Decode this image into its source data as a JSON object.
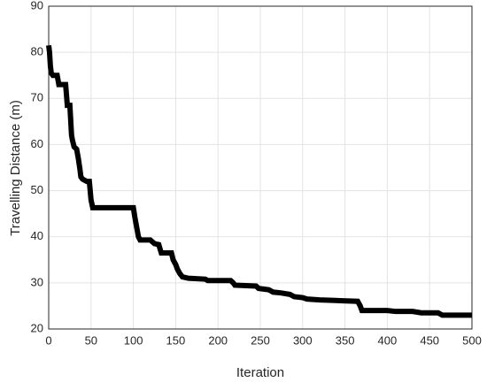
{
  "chart_data": {
    "type": "line",
    "x_label": "Iteration",
    "y_label": "Travelling Distance (m)",
    "xlim": [
      0,
      500
    ],
    "xticks": [
      0,
      50,
      100,
      150,
      200,
      250,
      300,
      350,
      400,
      450,
      500
    ],
    "ylim": [
      20,
      90
    ],
    "yticks": [
      20,
      30,
      40,
      50,
      60,
      70,
      80,
      90
    ],
    "grid": true,
    "series": [
      {
        "color": "#000000",
        "x": [
          0,
          1,
          2,
          3,
          5,
          10,
          12,
          20,
          22,
          25,
          27,
          28,
          30,
          33,
          35,
          37,
          38,
          40,
          45,
          48,
          50,
          52,
          100,
          102,
          104,
          106,
          108,
          120,
          125,
          130,
          133,
          145,
          147,
          150,
          152,
          155,
          158,
          165,
          185,
          188,
          215,
          218,
          220,
          245,
          248,
          260,
          265,
          275,
          285,
          290,
          300,
          305,
          320,
          335,
          365,
          368,
          370,
          400,
          410,
          430,
          440,
          460,
          465,
          500
        ],
        "values": [
          81.5,
          80,
          77,
          75.5,
          75,
          75,
          73,
          73,
          68.5,
          68.5,
          62,
          61,
          59.5,
          59,
          57,
          54.5,
          53,
          52.5,
          52,
          52,
          48,
          46.3,
          46.3,
          44,
          42,
          40,
          39.3,
          39.3,
          38.5,
          38.3,
          36.5,
          36.5,
          35,
          34,
          33,
          32,
          31.3,
          31,
          30.8,
          30.5,
          30.5,
          30,
          29.5,
          29.3,
          28.8,
          28.5,
          28,
          27.8,
          27.5,
          27,
          26.8,
          26.5,
          26.3,
          26.2,
          26,
          25,
          24,
          24,
          23.8,
          23.8,
          23.5,
          23.5,
          23,
          23
        ]
      }
    ]
  }
}
